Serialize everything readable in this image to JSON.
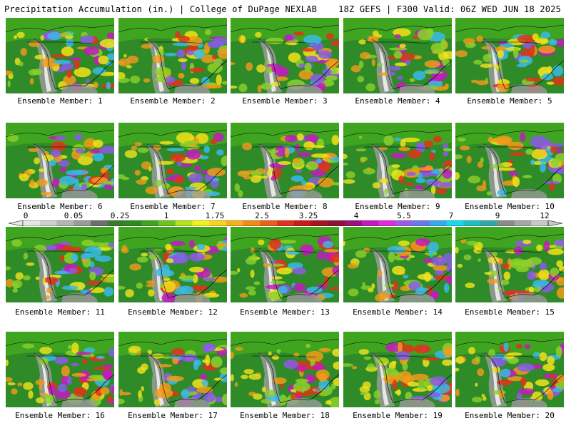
{
  "header": {
    "left": "Precipitation Accumulation (in.) | College of DuPage NEXLAB",
    "right": "18Z GEFS | F300 Valid: 06Z WED JUN 18 2025"
  },
  "members": [
    {
      "label": "Ensemble Member: 1"
    },
    {
      "label": "Ensemble Member: 2"
    },
    {
      "label": "Ensemble Member: 3"
    },
    {
      "label": "Ensemble Member: 4"
    },
    {
      "label": "Ensemble Member: 5"
    },
    {
      "label": "Ensemble Member: 6"
    },
    {
      "label": "Ensemble Member: 7"
    },
    {
      "label": "Ensemble Member: 8"
    },
    {
      "label": "Ensemble Member: 9"
    },
    {
      "label": "Ensemble Member: 10"
    },
    {
      "label": "Ensemble Member: 11"
    },
    {
      "label": "Ensemble Member: 12"
    },
    {
      "label": "Ensemble Member: 13"
    },
    {
      "label": "Ensemble Member: 14"
    },
    {
      "label": "Ensemble Member: 15"
    },
    {
      "label": "Ensemble Member: 16"
    },
    {
      "label": "Ensemble Member: 17"
    },
    {
      "label": "Ensemble Member: 18"
    },
    {
      "label": "Ensemble Member: 19"
    },
    {
      "label": "Ensemble Member: 20"
    }
  ],
  "colorbar": {
    "tick_labels": [
      "0",
      "0.05",
      "0.25",
      "1",
      "1.75",
      "2.5",
      "3.25",
      "4",
      "5.5",
      "7",
      "9",
      "12"
    ],
    "colors": [
      "#e6e6e6",
      "#cfcfcf",
      "#b4b4b4",
      "#9a9a9a",
      "#6e6e6e",
      "#3c7a2e",
      "#2e8b22",
      "#3fa41f",
      "#6fc21f",
      "#b5e21c",
      "#f2f21a",
      "#f9d41a",
      "#f7b01a",
      "#f28a1a",
      "#ec5f1a",
      "#e2321a",
      "#cc1a1a",
      "#a8141e",
      "#8a1236",
      "#9d1080",
      "#c31ac0",
      "#e42ae0",
      "#a05ae8",
      "#6a7ae8",
      "#3aa8f0",
      "#18d8f0",
      "#20c0c0",
      "#30a8a8",
      "#8a8a8a",
      "#a6a6a6",
      "#c8c8c8"
    ]
  },
  "map_colors": {
    "water": "#2f8a28",
    "land_green": "#3fa41f",
    "light_green": "#8cd12a",
    "yellow": "#f2e21a",
    "orange": "#f29a1a",
    "red": "#e2321a",
    "magenta": "#c31ac0",
    "purple": "#8a5ae8",
    "cyan": "#3ab8e8",
    "gray": "#9a9a9a",
    "white": "#f0f0f0"
  }
}
